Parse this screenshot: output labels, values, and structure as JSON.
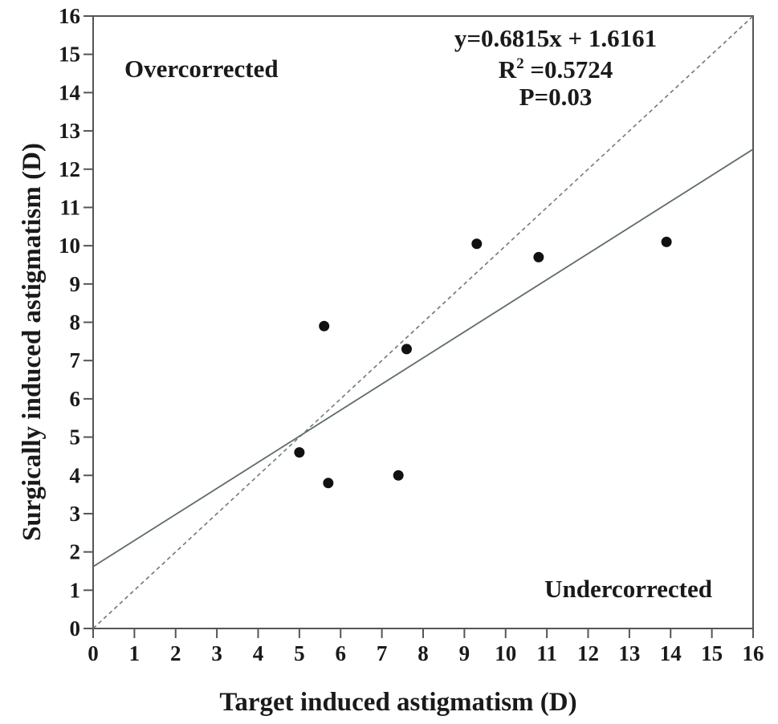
{
  "chart_data": {
    "type": "scatter",
    "title": "",
    "xlabel": "Target induced astigmatism (D)",
    "ylabel": "Surgically induced astigmatism (D)",
    "xlim": [
      0,
      16
    ],
    "ylim": [
      0,
      16
    ],
    "xticks": [
      "0",
      "1",
      "2",
      "3",
      "4",
      "5",
      "6",
      "7",
      "8",
      "9",
      "10",
      "11",
      "12",
      "13",
      "14",
      "15",
      "16"
    ],
    "yticks": [
      "0",
      "1",
      "2",
      "3",
      "4",
      "5",
      "6",
      "7",
      "8",
      "9",
      "10",
      "11",
      "12",
      "13",
      "14",
      "15",
      "16"
    ],
    "grid": false,
    "series": [
      {
        "points": [
          {
            "x": 5.0,
            "y": 4.6
          },
          {
            "x": 5.6,
            "y": 7.9
          },
          {
            "x": 5.7,
            "y": 3.8
          },
          {
            "x": 7.4,
            "y": 4.0
          },
          {
            "x": 7.6,
            "y": 7.3
          },
          {
            "x": 9.3,
            "y": 10.05
          },
          {
            "x": 10.8,
            "y": 9.7
          },
          {
            "x": 13.9,
            "y": 10.1
          }
        ]
      }
    ],
    "regression": {
      "slope": 0.6815,
      "intercept": 1.6161,
      "style": "solid",
      "color": "#5f6b6b"
    },
    "identity_line": {
      "slope": 1,
      "intercept": 0,
      "style": "dashed",
      "color": "#6f7a7a"
    },
    "annotations": {
      "equation": "y=0.6815x + 1.6161",
      "r2_prefix": "R",
      "r2_sup": "2",
      "r2_value": " =0.5724",
      "p_value": "P=0.03",
      "over_label": "Overcorrected",
      "under_label": "Undercorrected"
    }
  }
}
